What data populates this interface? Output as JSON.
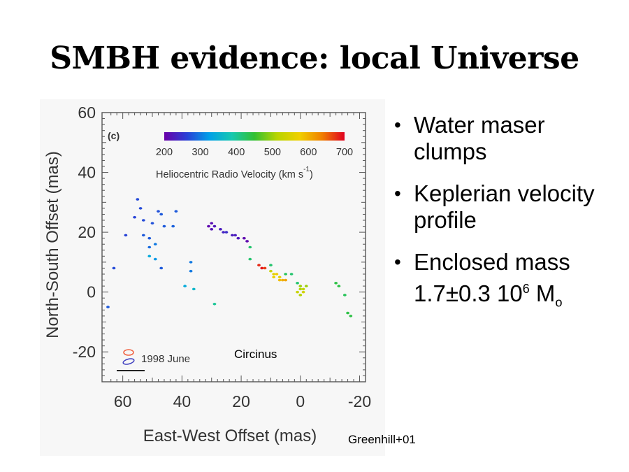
{
  "title": "SMBH evidence: local Universe",
  "bullets": [
    {
      "text": "Water maser clumps"
    },
    {
      "text": "Keplerian velocity profile"
    },
    {
      "main": "Enclosed mass 1.7±0.3 10",
      "sup": "6",
      "mid": " M",
      "sub": "o"
    }
  ],
  "source_label": "Greenhill+01",
  "chart_data": {
    "type": "scatter",
    "panel_label": "(c)",
    "xlabel": "East-West Offset (mas)",
    "ylabel": "North-South Offset (mas)",
    "xlim": [
      67,
      -22
    ],
    "ylim": [
      -30,
      60
    ],
    "x_ticks": [
      60,
      40,
      20,
      0,
      -20
    ],
    "y_ticks": [
      60,
      40,
      20,
      0,
      -20
    ],
    "colorbar": {
      "label": "Heliocentric Radio Velocity (km s",
      "label_sup": "-1",
      "label_end": ")",
      "ticks": [
        200,
        300,
        400,
        500,
        600,
        700
      ],
      "range": [
        200,
        700
      ],
      "colors": [
        "#6a00a8",
        "#2a3fd6",
        "#00a0e8",
        "#16c8b0",
        "#32c032",
        "#b8d400",
        "#f0d000",
        "#f08000",
        "#e00020"
      ]
    },
    "legend": {
      "label": "1998  June",
      "colors": [
        "#f06040",
        "#4040c0"
      ]
    },
    "annotation": "Circinus",
    "points": [
      {
        "x": 55,
        "y": 31,
        "v": 270
      },
      {
        "x": 54,
        "y": 28,
        "v": 270
      },
      {
        "x": 48,
        "y": 27,
        "v": 275
      },
      {
        "x": 47,
        "y": 26,
        "v": 280
      },
      {
        "x": 42,
        "y": 27,
        "v": 280
      },
      {
        "x": 56,
        "y": 25,
        "v": 265
      },
      {
        "x": 53,
        "y": 24,
        "v": 270
      },
      {
        "x": 50,
        "y": 23,
        "v": 275
      },
      {
        "x": 46,
        "y": 22,
        "v": 280
      },
      {
        "x": 43,
        "y": 22,
        "v": 285
      },
      {
        "x": 59,
        "y": 19,
        "v": 265
      },
      {
        "x": 53,
        "y": 19,
        "v": 280
      },
      {
        "x": 51,
        "y": 18,
        "v": 280
      },
      {
        "x": 51,
        "y": 15,
        "v": 290
      },
      {
        "x": 49,
        "y": 16,
        "v": 300
      },
      {
        "x": 51,
        "y": 12,
        "v": 340
      },
      {
        "x": 49,
        "y": 11,
        "v": 320
      },
      {
        "x": 63,
        "y": 8,
        "v": 270
      },
      {
        "x": 47,
        "y": 8,
        "v": 280
      },
      {
        "x": 37,
        "y": 10,
        "v": 300
      },
      {
        "x": 37,
        "y": 7,
        "v": 300
      },
      {
        "x": 39,
        "y": 2,
        "v": 340
      },
      {
        "x": 36,
        "y": 1,
        "v": 360
      },
      {
        "x": 65,
        "y": -5,
        "v": 280
      },
      {
        "x": 29,
        "y": -4,
        "v": 400
      },
      {
        "x": 31,
        "y": 22,
        "v": 210
      },
      {
        "x": 30,
        "y": 23,
        "v": 215
      },
      {
        "x": 29,
        "y": 22,
        "v": 225
      },
      {
        "x": 30,
        "y": 21,
        "v": 220
      },
      {
        "x": 27,
        "y": 21,
        "v": 230
      },
      {
        "x": 26,
        "y": 20,
        "v": 235
      },
      {
        "x": 25,
        "y": 20,
        "v": 245
      },
      {
        "x": 23,
        "y": 19,
        "v": 230
      },
      {
        "x": 22,
        "y": 19,
        "v": 230
      },
      {
        "x": 21,
        "y": 18,
        "v": 225
      },
      {
        "x": 19,
        "y": 18,
        "v": 210
      },
      {
        "x": 18,
        "y": 17,
        "v": 210
      },
      {
        "x": 17,
        "y": 15,
        "v": 420
      },
      {
        "x": 17,
        "y": 11,
        "v": 420
      },
      {
        "x": 14,
        "y": 9,
        "v": 680
      },
      {
        "x": 13,
        "y": 8,
        "v": 690
      },
      {
        "x": 12,
        "y": 8,
        "v": 670
      },
      {
        "x": 10,
        "y": 7,
        "v": 530
      },
      {
        "x": 9,
        "y": 6,
        "v": 560
      },
      {
        "x": 10,
        "y": 9,
        "v": 420
      },
      {
        "x": 8,
        "y": 6,
        "v": 580
      },
      {
        "x": 7,
        "y": 5,
        "v": 560
      },
      {
        "x": 6,
        "y": 4,
        "v": 600
      },
      {
        "x": 7,
        "y": 4,
        "v": 590
      },
      {
        "x": 5,
        "y": 4,
        "v": 610
      },
      {
        "x": 9,
        "y": 5,
        "v": 570
      },
      {
        "x": 5,
        "y": 6,
        "v": 430
      },
      {
        "x": 3,
        "y": 6,
        "v": 420
      },
      {
        "x": 1,
        "y": 3,
        "v": 420
      },
      {
        "x": 0,
        "y": 2,
        "v": 500
      },
      {
        "x": -1,
        "y": 1,
        "v": 520
      },
      {
        "x": 0,
        "y": 1,
        "v": 510
      },
      {
        "x": -2,
        "y": 2,
        "v": 500
      },
      {
        "x": -1,
        "y": 0,
        "v": 540
      },
      {
        "x": 1,
        "y": 0,
        "v": 530
      },
      {
        "x": 0,
        "y": -1,
        "v": 510
      },
      {
        "x": -12,
        "y": 3,
        "v": 440
      },
      {
        "x": -13,
        "y": 2,
        "v": 440
      },
      {
        "x": -15,
        "y": -1,
        "v": 430
      },
      {
        "x": -16,
        "y": -7,
        "v": 440
      },
      {
        "x": -17,
        "y": -8,
        "v": 440
      }
    ]
  }
}
